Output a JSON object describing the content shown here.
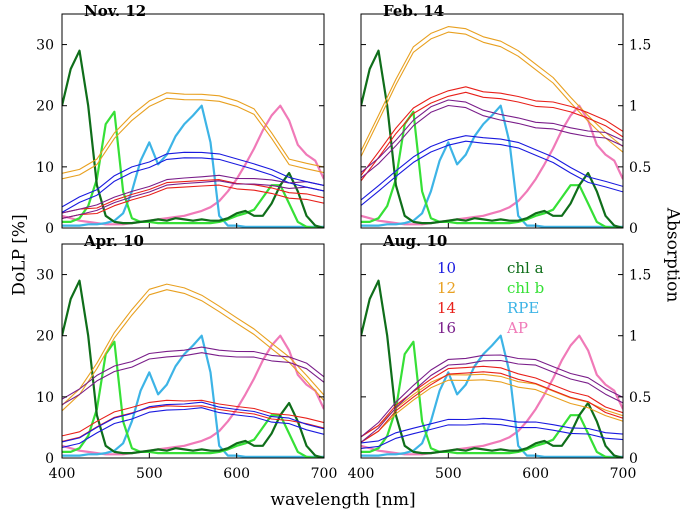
{
  "figure": {
    "xlabel": "wavelength [nm]",
    "ylabel_left": "DoLP [%]",
    "ylabel_right": "Absorption"
  },
  "legend": {
    "entries": [
      {
        "label": "10",
        "color": "#1a1adf"
      },
      {
        "label": "12",
        "color": "#e8a020"
      },
      {
        "label": "14",
        "color": "#e8201a"
      },
      {
        "label": "16",
        "color": "#7a1e8a"
      },
      {
        "label": "chl a",
        "color": "#0f6e1a"
      },
      {
        "label": "chl b",
        "color": "#36e036"
      },
      {
        "label": "RPE",
        "color": "#3db4e6"
      },
      {
        "label": "AP",
        "color": "#f07ab8"
      }
    ]
  },
  "colors": {
    "d10": "#1a1adf",
    "d12": "#e8a020",
    "d14": "#e8201a",
    "d16": "#7a1e8a",
    "chla": "#0f6e1a",
    "chlb": "#36e036",
    "rpe": "#3db4e6",
    "ap": "#f07ab8"
  },
  "absorption_ticks": [
    "0",
    "0.5",
    "1",
    "1.5"
  ],
  "chart_data": [
    {
      "type": "line",
      "title": "Nov. 12",
      "xlabel": "wavelength [nm]",
      "ylabel": "DoLP [%]",
      "ylabel_right": "Absorption",
      "xlim": [
        400,
        700
      ],
      "ylim": [
        0,
        35
      ],
      "ylim_right": [
        0,
        1.75
      ],
      "xticks": [
        400,
        500,
        600,
        700
      ],
      "yticks": [
        0,
        10,
        20,
        30
      ],
      "dolp": {
        "x": [
          400,
          420,
          440,
          460,
          480,
          500,
          520,
          540,
          560,
          580,
          600,
          620,
          640,
          660,
          680,
          700
        ],
        "d10": [
          3,
          4.5,
          6,
          8,
          9.5,
          10.5,
          11.5,
          12,
          12,
          11.5,
          11,
          10,
          9,
          8,
          7,
          6.5
        ],
        "d12": [
          8.5,
          9,
          11,
          15,
          18,
          20.5,
          21.5,
          21.5,
          21.5,
          21,
          20.5,
          19,
          15,
          11,
          10,
          9.5
        ],
        "d14": [
          2,
          2.5,
          3,
          4,
          5,
          6,
          6.8,
          7.2,
          7.4,
          7.3,
          7,
          6.6,
          6,
          5.5,
          5,
          4.5
        ],
        "d16": [
          2,
          2.5,
          3.5,
          4.5,
          5.5,
          6.5,
          7.3,
          7.8,
          8,
          8,
          7.8,
          7.6,
          7.3,
          7.1,
          7,
          6.5
        ]
      }
    },
    {
      "type": "line",
      "title": "Feb. 14",
      "xlabel": "wavelength [nm]",
      "ylabel": "DoLP [%]",
      "ylabel_right": "Absorption",
      "xlim": [
        400,
        700
      ],
      "ylim": [
        0,
        35
      ],
      "ylim_right": [
        0,
        1.75
      ],
      "xticks": [
        400,
        500,
        600,
        700
      ],
      "yticks": [
        0,
        10,
        20,
        30
      ],
      "dolp": {
        "x": [
          400,
          420,
          440,
          460,
          480,
          500,
          520,
          540,
          560,
          580,
          600,
          620,
          640,
          660,
          680,
          700
        ],
        "d10": [
          4,
          6.5,
          9,
          11,
          13,
          14,
          14.5,
          14.5,
          14,
          13.5,
          12.5,
          11,
          9.5,
          8,
          7,
          6.5
        ],
        "d12": [
          12,
          18,
          24,
          29,
          31.5,
          32.5,
          32,
          31,
          30,
          28.5,
          26.5,
          24,
          21,
          18,
          15,
          13
        ],
        "d14": [
          8,
          12,
          16,
          19,
          21,
          22,
          22.5,
          22,
          21.5,
          21,
          20.5,
          20,
          19.5,
          18.5,
          17,
          15.5
        ],
        "d16": [
          8.5,
          11,
          14,
          17,
          19.5,
          20.5,
          20,
          19,
          18,
          17.5,
          17,
          16.5,
          16,
          15.5,
          15,
          14
        ]
      }
    },
    {
      "type": "line",
      "title": "Apr. 10",
      "xlabel": "wavelength [nm]",
      "ylabel": "DoLP [%]",
      "ylabel_right": "Absorption",
      "xlim": [
        400,
        700
      ],
      "ylim": [
        0,
        35
      ],
      "ylim_right": [
        0,
        1.75
      ],
      "xticks": [
        400,
        500,
        600,
        700
      ],
      "yticks": [
        0,
        10,
        20,
        30
      ],
      "dolp": {
        "x": [
          400,
          420,
          440,
          460,
          480,
          500,
          520,
          540,
          560,
          580,
          600,
          620,
          640,
          660,
          680,
          700
        ],
        "d10": [
          2,
          3,
          4.5,
          6,
          7,
          7.8,
          8.3,
          8.5,
          8.5,
          8,
          7.5,
          7,
          6.5,
          6,
          5,
          4.5
        ],
        "d12": [
          8,
          11,
          15,
          20,
          24,
          27,
          28,
          27.5,
          26,
          24.5,
          22.5,
          20.5,
          18.5,
          16,
          13,
          10
        ],
        "d14": [
          3,
          4,
          5.5,
          7,
          8,
          8.5,
          9,
          9,
          8.8,
          8.5,
          8,
          7.5,
          7,
          6.5,
          6,
          5.5
        ],
        "d16": [
          9,
          11,
          13,
          14.5,
          15.5,
          16.5,
          17,
          17.3,
          17.5,
          17.3,
          17,
          16.8,
          16.5,
          16,
          15,
          13
        ]
      }
    },
    {
      "type": "line",
      "title": "Aug. 10",
      "xlabel": "wavelength [nm]",
      "ylabel": "DoLP [%]",
      "ylabel_right": "Absorption",
      "xlim": [
        400,
        700
      ],
      "ylim": [
        0,
        35
      ],
      "ylim_right": [
        0,
        1.75
      ],
      "xticks": [
        400,
        500,
        600,
        700
      ],
      "yticks": [
        0,
        10,
        20,
        30
      ],
      "dolp": {
        "x": [
          400,
          420,
          440,
          460,
          480,
          500,
          520,
          540,
          560,
          580,
          600,
          620,
          640,
          660,
          680,
          700
        ],
        "d10": [
          2,
          2.5,
          3.5,
          4.5,
          5.2,
          5.7,
          6,
          6,
          5.8,
          5.6,
          5.3,
          5,
          4.6,
          4.2,
          3.8,
          3.5
        ],
        "d12": [
          3,
          5,
          7.5,
          10,
          12,
          13,
          13.3,
          13.2,
          12.8,
          12.2,
          11.5,
          10.5,
          9.5,
          8.5,
          7.5,
          6.5
        ],
        "d14": [
          3,
          5,
          8,
          10.5,
          12.5,
          14,
          14.5,
          14.5,
          14.2,
          13.5,
          12.5,
          11.5,
          10.5,
          9.5,
          8,
          7
        ],
        "d16": [
          3,
          5.5,
          8.5,
          11.5,
          14,
          15.5,
          16,
          16.3,
          16.3,
          16,
          15.5,
          14.5,
          13.5,
          12.5,
          11,
          9.5
        ]
      }
    }
  ],
  "absorption_spectra": {
    "x": [
      400,
      410,
      420,
      430,
      440,
      450,
      460,
      470,
      480,
      490,
      500,
      510,
      520,
      530,
      540,
      550,
      560,
      570,
      580,
      590,
      600,
      610,
      620,
      630,
      640,
      650,
      660,
      670,
      680,
      690,
      700
    ],
    "chla": [
      1.0,
      1.3,
      1.45,
      1.0,
      0.35,
      0.1,
      0.05,
      0.04,
      0.04,
      0.05,
      0.06,
      0.07,
      0.06,
      0.08,
      0.07,
      0.06,
      0.07,
      0.06,
      0.06,
      0.08,
      0.12,
      0.14,
      0.1,
      0.1,
      0.2,
      0.35,
      0.45,
      0.3,
      0.1,
      0.02,
      0.0
    ],
    "chlb": [
      0.05,
      0.05,
      0.08,
      0.18,
      0.4,
      0.85,
      0.95,
      0.3,
      0.08,
      0.05,
      0.05,
      0.04,
      0.04,
      0.04,
      0.04,
      0.04,
      0.04,
      0.04,
      0.05,
      0.07,
      0.1,
      0.12,
      0.15,
      0.25,
      0.35,
      0.35,
      0.2,
      0.05,
      0.01,
      0.0,
      0.0
    ],
    "rpe": [
      0.02,
      0.02,
      0.02,
      0.03,
      0.03,
      0.04,
      0.06,
      0.12,
      0.3,
      0.55,
      0.7,
      0.52,
      0.6,
      0.75,
      0.85,
      0.92,
      1.0,
      0.7,
      0.1,
      0.02,
      0.02,
      0.01,
      0.01,
      0.01,
      0.01,
      0.01,
      0.01,
      0.01,
      0.01,
      0.01,
      0.01
    ],
    "ap": [
      0.1,
      0.08,
      0.06,
      0.05,
      0.04,
      0.03,
      0.03,
      0.03,
      0.04,
      0.05,
      0.06,
      0.07,
      0.08,
      0.09,
      0.1,
      0.12,
      0.14,
      0.17,
      0.22,
      0.3,
      0.4,
      0.52,
      0.65,
      0.8,
      0.92,
      1.0,
      0.88,
      0.68,
      0.6,
      0.55,
      0.4
    ]
  }
}
